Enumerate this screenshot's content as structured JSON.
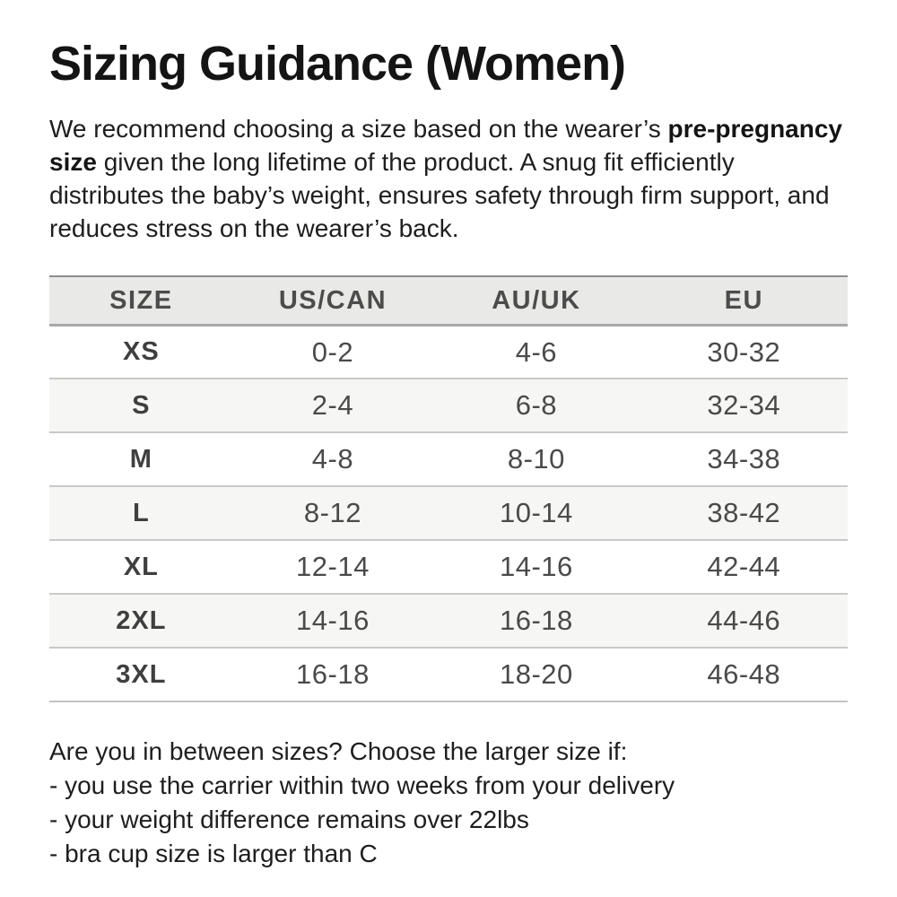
{
  "page": {
    "title": "Sizing Guidance (Women)"
  },
  "intro": {
    "text_before": "We recommend choosing a size based on the wearer’s ",
    "bold_text": "pre-pregnancy size",
    "text_after": " given the long lifetime of the product. A snug fit efficiently distributes the baby’s weight, ensures safety through firm support, and reduces stress on the wearer’s back."
  },
  "table": {
    "headers": [
      "SIZE",
      "US/CAN",
      "AU/UK",
      "EU"
    ],
    "rows": [
      {
        "size": "XS",
        "us_can": "0-2",
        "au_uk": "4-6",
        "eu": "30-32"
      },
      {
        "size": "S",
        "us_can": "2-4",
        "au_uk": "6-8",
        "eu": "32-34"
      },
      {
        "size": "M",
        "us_can": "4-8",
        "au_uk": "8-10",
        "eu": "34-38"
      },
      {
        "size": "L",
        "us_can": "8-12",
        "au_uk": "10-14",
        "eu": "38-42"
      },
      {
        "size": "XL",
        "us_can": "12-14",
        "au_uk": "14-16",
        "eu": "42-44"
      },
      {
        "size": "2XL",
        "us_can": "14-16",
        "au_uk": "16-18",
        "eu": "44-46"
      },
      {
        "size": "3XL",
        "us_can": "16-18",
        "au_uk": "18-20",
        "eu": "46-48"
      }
    ]
  },
  "footer": {
    "heading": "Are you in between sizes? Choose the larger size if:",
    "items": [
      "- you use the carrier within two weeks from your delivery",
      "- your weight difference remains over 22lbs",
      "- bra cup size is larger than C"
    ]
  },
  "colors": {
    "title_text": "#141414",
    "body_text": "#1e1e1e",
    "table_text": "#4a4a4a",
    "header_bg": "#e9e9e7",
    "alt_row_bg": "#f6f6f4",
    "table_top_border": "#8d8d8d",
    "header_bottom_border": "#a8a8a8",
    "row_separator": "#c9c9c9",
    "table_bottom_border": "#c4c4c4"
  }
}
